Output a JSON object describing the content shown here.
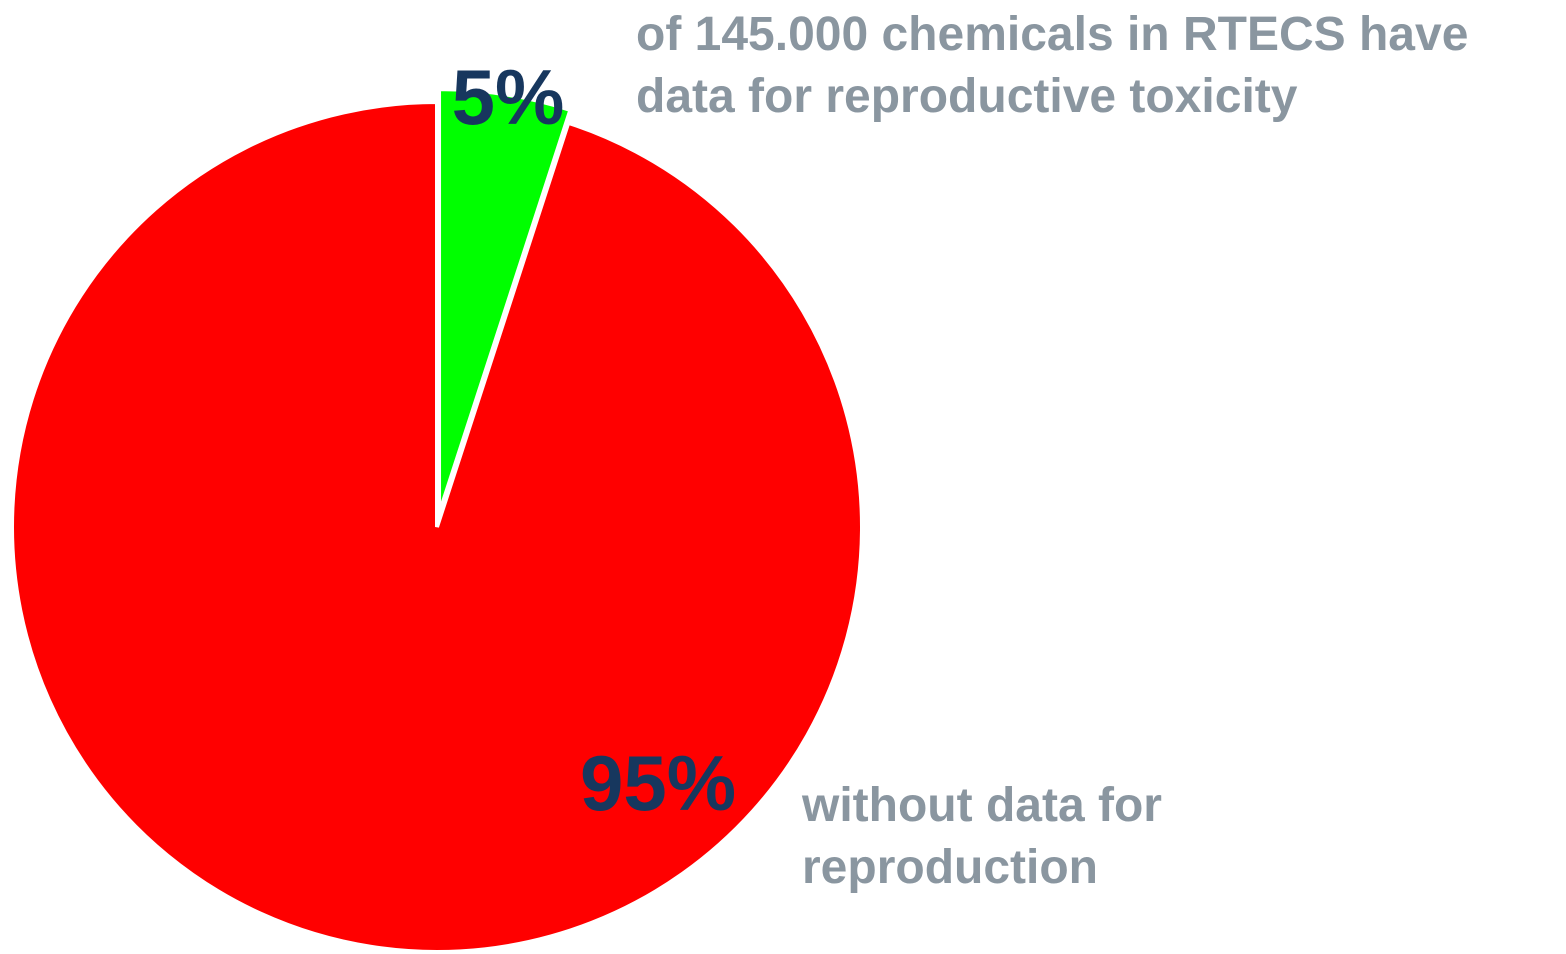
{
  "chart_data": {
    "type": "pie",
    "slices": [
      {
        "label": "5%",
        "value": 5,
        "color": "#00ff00",
        "exploded": true,
        "description": [
          "of 145.000 chemicals in RTECS have",
          "data for  reproductive toxicity"
        ]
      },
      {
        "label": "95%",
        "value": 95,
        "color": "#ff0000",
        "exploded": false,
        "description": [
          "without data for",
          "reproduction"
        ]
      }
    ],
    "start_angle": "12 o'clock",
    "direction": "clockwise",
    "label_color": "#17375e",
    "description_color": "#8a96a0",
    "slice_border_color": "#ffffff"
  }
}
